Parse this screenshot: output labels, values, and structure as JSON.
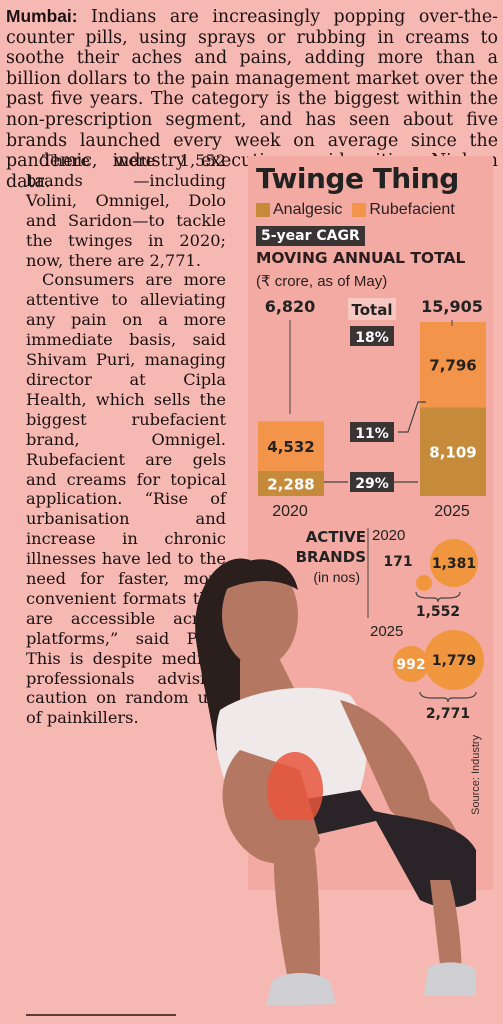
{
  "article": {
    "lead_dateline": "Mumbai:",
    "lead_text": " Indians are increasingly popping over-the-counter pills, using sprays or rubbing in creams to soothe their aches and pains, adding more than a billion dollars to the pain management market over the past five years. The category is the biggest within the non-prescription segment, and has seen about five brands launched every week on average since the pandemic, industry executives said, citing Nielsen data.",
    "col_lines": [
      "ut five brands laun-",
      "ched every week on",
      "average since the pan-",
      "demic, industry ex-",
      "ecutives said, citing",
      "Nielsen data."
    ],
    "para2": "There were 1,552 brands —including Volini, Omnigel, Dolo and Saridon—to tackle the twinges in 2020; now, there are 2,771.",
    "para3": "Consumers are more attentive to alleviating any pain on a more immediate basis, said Shivam Puri, managing director at Cipla Health, which sells the biggest rubefacient brand, Omnigel. Rubefacient are gels and creams for topical application. “Rise of urbanisation and increase in chronic illnesses have led to the need for faster, more convenient formats that are accessible across platforms,” said Puri. This is despite medical professionals advising caution on random use of painkillers."
  },
  "infographic": {
    "title": "Twinge Thing",
    "legend_analgesic": "Analgesic",
    "legend_rubefacient": "Rubefacient",
    "cagr_label": "5-year CAGR",
    "subtitle": "MOVING ANNUAL TOTAL",
    "unit": "(₹ crore, as of May)",
    "total_label": "Total",
    "total_cagr": "18%",
    "rub_cagr": "11%",
    "ana_cagr": "29%",
    "brands_title_1": "ACTIVE",
    "brands_title_2": "BRANDS",
    "brands_unit": "(in nos)",
    "year_2020": "2020",
    "year_2025": "2025",
    "b2020_small": "171",
    "b2020_large": "1,381",
    "b2020_total": "1,552",
    "b2025_small": "992",
    "b2025_large": "1,779",
    "b2025_total": "2,771",
    "source": "Source: Industry",
    "colors": {
      "analgesic": "#c58a3a",
      "rubefacient": "#f2944a",
      "bubble": "#f0963f"
    }
  },
  "chart_data": {
    "type": "bar",
    "categories": [
      "2020",
      "2025"
    ],
    "series": [
      {
        "name": "Analgesic",
        "values": [
          2288,
          8109
        ]
      },
      {
        "name": "Rubefacient",
        "values": [
          4532,
          7796
        ]
      }
    ],
    "totals": [
      "6,820",
      "15,905"
    ],
    "total_values": [
      6820,
      15905
    ],
    "value_labels": {
      "Analgesic": [
        "2,288",
        "8,109"
      ],
      "Rubefacient": [
        "4,532",
        "7,796"
      ]
    },
    "cagr": {
      "Total": "18%",
      "Rubefacient": "11%",
      "Analgesic": "29%"
    },
    "title": "Twinge Thing",
    "ylabel": "",
    "xlabel": ""
  }
}
